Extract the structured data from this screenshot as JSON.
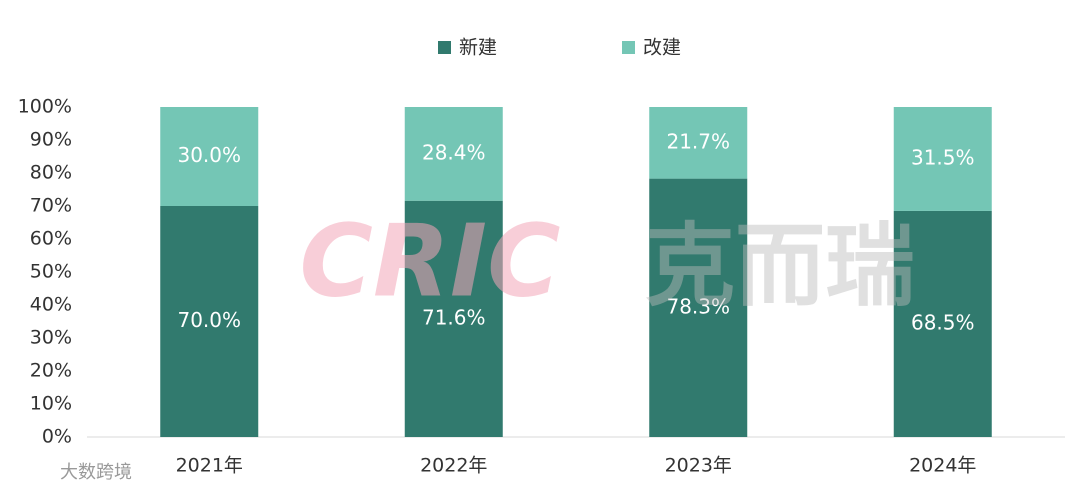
{
  "chart_data": {
    "type": "stacked_bar",
    "categories": [
      "2021年",
      "2022年",
      "2023年",
      "2024年"
    ],
    "series": [
      {
        "name": "新建",
        "color": "#317a6e",
        "values": [
          70.0,
          71.6,
          78.3,
          68.5
        ],
        "value_labels": [
          "70.0%",
          "71.6%",
          "78.3%",
          "68.5%"
        ]
      },
      {
        "name": "改建",
        "color": "#74c6b5",
        "values": [
          30.0,
          28.4,
          21.7,
          31.5
        ],
        "value_labels": [
          "30.0%",
          "28.4%",
          "21.7%",
          "31.5%"
        ]
      }
    ],
    "ylim": [
      0,
      100
    ],
    "yticks": [
      {
        "value": 0,
        "label": "0%"
      },
      {
        "value": 10,
        "label": "10%"
      },
      {
        "value": 20,
        "label": "20%"
      },
      {
        "value": 30,
        "label": "30%"
      },
      {
        "value": 40,
        "label": "40%"
      },
      {
        "value": 50,
        "label": "50%"
      },
      {
        "value": 60,
        "label": "60%"
      },
      {
        "value": 70,
        "label": "70%"
      },
      {
        "value": 80,
        "label": "80%"
      },
      {
        "value": 90,
        "label": "90%"
      },
      {
        "value": 100,
        "label": "100%"
      }
    ],
    "legend": "top",
    "watermarks": [
      "CRIC",
      "克而瑞",
      "大数跨境"
    ]
  }
}
